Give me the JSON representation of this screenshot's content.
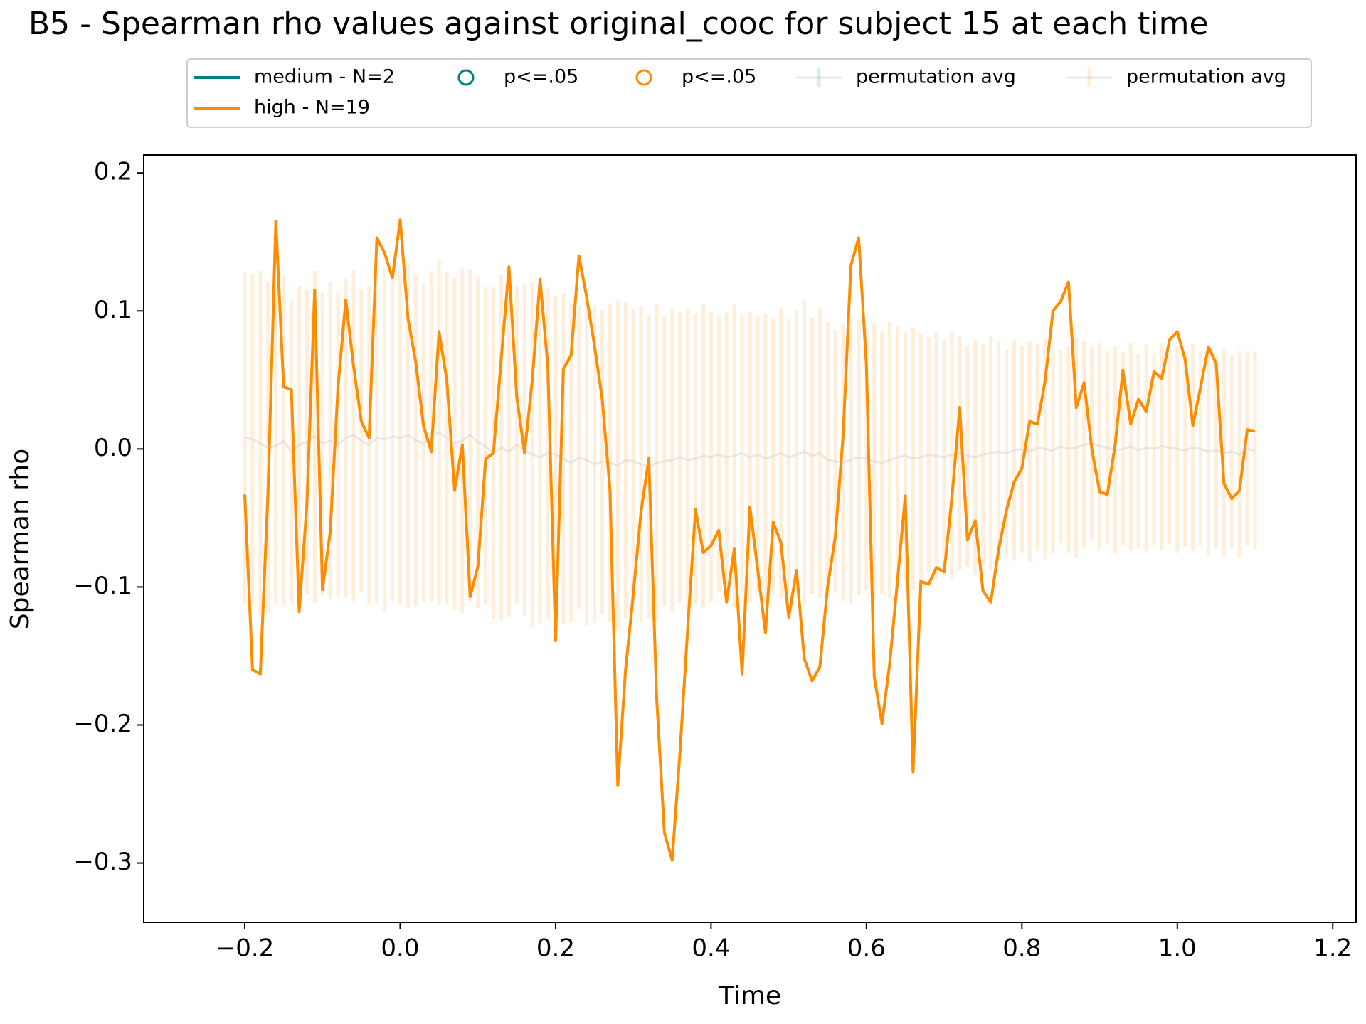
{
  "chart_data": {
    "type": "line",
    "title": "B5 - Spearman rho values against original_cooc for subject 15 at each time",
    "xlabel": "Time",
    "ylabel": "Spearman rho",
    "xlim": [
      -0.33,
      1.23
    ],
    "ylim": [
      -0.343,
      0.213
    ],
    "xticks": [
      {
        "value": -0.2,
        "label": "−0.2"
      },
      {
        "value": 0,
        "label": "0.0"
      },
      0.2,
      0.4,
      0.6,
      0.8,
      {
        "value": 1,
        "label": "1.0"
      },
      1.2
    ],
    "yticks": [
      {
        "value": -0.3,
        "label": "−0.3"
      },
      {
        "value": -0.2,
        "label": "−0.2"
      },
      {
        "value": -0.1,
        "label": "−0.1"
      },
      {
        "value": 0,
        "label": "0.0"
      },
      0.1,
      0.2
    ],
    "grid": false,
    "x": [
      -0.2,
      -0.19,
      -0.18,
      -0.17,
      -0.16,
      -0.15,
      -0.14,
      -0.13,
      -0.12,
      -0.11,
      -0.1,
      -0.09,
      -0.08,
      -0.07,
      -0.06,
      -0.05,
      -0.04,
      -0.03,
      -0.02,
      -0.01,
      0,
      0.01,
      0.02,
      0.03,
      0.04,
      0.05,
      0.06,
      0.07,
      0.08,
      0.09,
      0.1,
      0.11,
      0.12,
      0.13,
      0.14,
      0.15,
      0.16,
      0.17,
      0.18,
      0.19,
      0.2,
      0.21,
      0.22,
      0.23,
      0.24,
      0.25,
      0.26,
      0.27,
      0.28,
      0.29,
      0.3,
      0.31,
      0.32,
      0.33,
      0.34,
      0.35,
      0.36,
      0.37,
      0.38,
      0.39,
      0.4,
      0.41,
      0.42,
      0.43,
      0.44,
      0.45,
      0.46,
      0.47,
      0.48,
      0.49,
      0.5,
      0.51,
      0.52,
      0.53,
      0.54,
      0.55,
      0.56,
      0.57,
      0.58,
      0.59,
      0.6,
      0.61,
      0.62,
      0.63,
      0.64,
      0.65,
      0.66,
      0.67,
      0.68,
      0.69,
      0.7,
      0.71,
      0.72,
      0.73,
      0.74,
      0.75,
      0.76,
      0.77,
      0.78,
      0.79,
      0.8,
      0.81,
      0.82,
      0.83,
      0.84,
      0.85,
      0.86,
      0.87,
      0.88,
      0.89,
      0.9,
      0.91,
      0.92,
      0.93,
      0.94,
      0.95,
      0.96,
      0.97,
      0.98,
      0.99,
      1,
      1.01,
      1.02,
      1.03,
      1.04,
      1.05,
      1.06,
      1.07,
      1.08,
      1.09,
      1.1
    ],
    "series": [
      {
        "name": "high - N=19",
        "color": "#ff8c00",
        "values": [
          -0.033,
          -0.16,
          -0.163,
          -0.03,
          0.165,
          0.045,
          0.043,
          -0.118,
          -0.04,
          0.115,
          -0.102,
          -0.06,
          0.045,
          0.108,
          0.06,
          0.02,
          0.008,
          0.153,
          0.142,
          0.124,
          0.166,
          0.095,
          0.063,
          0.017,
          -0.002,
          0.085,
          0.05,
          -0.03,
          0.003,
          -0.107,
          -0.085,
          -0.007,
          -0.003,
          0.065,
          0.132,
          0.038,
          -0.003,
          0.05,
          0.123,
          0.06,
          -0.139,
          0.058,
          0.068,
          0.14,
          0.11,
          0.075,
          0.036,
          -0.03,
          -0.244,
          -0.16,
          -0.105,
          -0.045,
          -0.007,
          -0.18,
          -0.278,
          -0.298,
          -0.22,
          -0.13,
          -0.044,
          -0.075,
          -0.07,
          -0.059,
          -0.111,
          -0.072,
          -0.163,
          -0.042,
          -0.087,
          -0.133,
          -0.053,
          -0.068,
          -0.122,
          -0.088,
          -0.152,
          -0.168,
          -0.158,
          -0.1,
          -0.063,
          0.01,
          0.133,
          0.153,
          0.06,
          -0.165,
          -0.199,
          -0.155,
          -0.095,
          -0.034,
          -0.234,
          -0.096,
          -0.098,
          -0.086,
          -0.089,
          -0.035,
          0.03,
          -0.066,
          -0.052,
          -0.103,
          -0.111,
          -0.073,
          -0.045,
          -0.024,
          -0.014,
          0.02,
          0.018,
          0.05,
          0.1,
          0.107,
          0.121,
          0.03,
          0.048,
          0.0,
          -0.031,
          -0.033,
          0.003,
          0.057,
          0.018,
          0.036,
          0.027,
          0.056,
          0.051,
          0.079,
          0.085,
          0.065,
          0.017,
          0.045,
          0.074,
          0.062,
          -0.025,
          -0.036,
          -0.03,
          0.014,
          0.013
        ]
      }
    ],
    "permutation": {
      "name": "permutation avg",
      "color": "#ff8c00",
      "line_color": "#d9d9d9",
      "values": [
        0.008,
        0.007,
        0.004,
        0.001,
        0.002,
        0.006,
        -0.002,
        0.003,
        0.005,
        0.009,
        0.004,
        0.006,
        0.003,
        0.008,
        0.01,
        0.006,
        0.003,
        0.008,
        0.007,
        0.009,
        0.008,
        0.01,
        0.006,
        0.004,
        0.009,
        0.012,
        0.008,
        0.004,
        0.006,
        0.01,
        0.005,
        0.002,
        -0.003,
        0.001,
        -0.002,
        0.003,
        -0.001,
        -0.004,
        -0.006,
        -0.003,
        -0.004,
        -0.007,
        -0.01,
        -0.006,
        -0.008,
        -0.011,
        -0.009,
        -0.01,
        -0.012,
        -0.008,
        -0.009,
        -0.011,
        -0.013,
        -0.01,
        -0.009,
        -0.008,
        -0.006,
        -0.008,
        -0.007,
        -0.005,
        -0.006,
        -0.004,
        -0.006,
        -0.005,
        -0.003,
        -0.006,
        -0.004,
        -0.007,
        -0.005,
        -0.003,
        -0.006,
        -0.004,
        -0.002,
        -0.005,
        -0.003,
        -0.008,
        -0.009,
        -0.01,
        -0.008,
        -0.006,
        -0.007,
        -0.009,
        -0.01,
        -0.008,
        -0.006,
        -0.005,
        -0.007,
        -0.006,
        -0.004,
        -0.005,
        -0.006,
        -0.004,
        -0.003,
        -0.005,
        -0.006,
        -0.004,
        -0.003,
        -0.002,
        -0.003,
        -0.001,
        0.0,
        -0.002,
        0.001,
        0.0,
        -0.001,
        0.002,
        0.0,
        0.001,
        0.003,
        0.004,
        0.002,
        0.001,
        -0.001,
        0.0,
        0.002,
        -0.001,
        0.001,
        0.0,
        0.002,
        0.001,
        0.0,
        -0.001,
        0.001,
        0.0,
        -0.002,
        -0.001,
        -0.003,
        -0.002,
        -0.004,
        0.0,
        -0.001
      ],
      "errors": [
        0.12,
        0.12,
        0.125,
        0.12,
        0.115,
        0.12,
        0.11,
        0.115,
        0.11,
        0.12,
        0.11,
        0.115,
        0.11,
        0.115,
        0.12,
        0.11,
        0.115,
        0.12,
        0.125,
        0.12,
        0.12,
        0.125,
        0.12,
        0.115,
        0.12,
        0.125,
        0.12,
        0.12,
        0.125,
        0.12,
        0.12,
        0.115,
        0.12,
        0.125,
        0.12,
        0.115,
        0.12,
        0.125,
        0.12,
        0.12,
        0.115,
        0.12,
        0.115,
        0.11,
        0.12,
        0.115,
        0.11,
        0.115,
        0.12,
        0.115,
        0.11,
        0.115,
        0.11,
        0.115,
        0.105,
        0.11,
        0.105,
        0.11,
        0.105,
        0.11,
        0.105,
        0.1,
        0.105,
        0.11,
        0.1,
        0.105,
        0.1,
        0.105,
        0.1,
        0.105,
        0.1,
        0.105,
        0.11,
        0.1,
        0.105,
        0.1,
        0.095,
        0.1,
        0.105,
        0.1,
        0.095,
        0.1,
        0.095,
        0.1,
        0.095,
        0.09,
        0.095,
        0.09,
        0.085,
        0.09,
        0.085,
        0.09,
        0.085,
        0.08,
        0.085,
        0.08,
        0.085,
        0.08,
        0.075,
        0.08,
        0.075,
        0.08,
        0.075,
        0.08,
        0.075,
        0.07,
        0.075,
        0.08,
        0.075,
        0.07,
        0.075,
        0.07,
        0.075,
        0.07,
        0.075,
        0.07,
        0.075,
        0.07,
        0.075,
        0.07,
        0.075,
        0.07,
        0.075,
        0.07,
        0.075,
        0.07,
        0.075,
        0.07,
        0.075,
        0.07,
        0.072
      ]
    },
    "legend_extra": [
      {
        "label": "medium - N=2",
        "color": "#008080",
        "marker": "line"
      },
      {
        "label": "p<=.05",
        "color": "#008080",
        "marker": "circle"
      },
      {
        "label": "p<=.05",
        "color": "#ff8c00",
        "marker": "circle"
      },
      {
        "label": "permutation avg",
        "color": "#008080",
        "marker": "errorbar"
      }
    ]
  }
}
